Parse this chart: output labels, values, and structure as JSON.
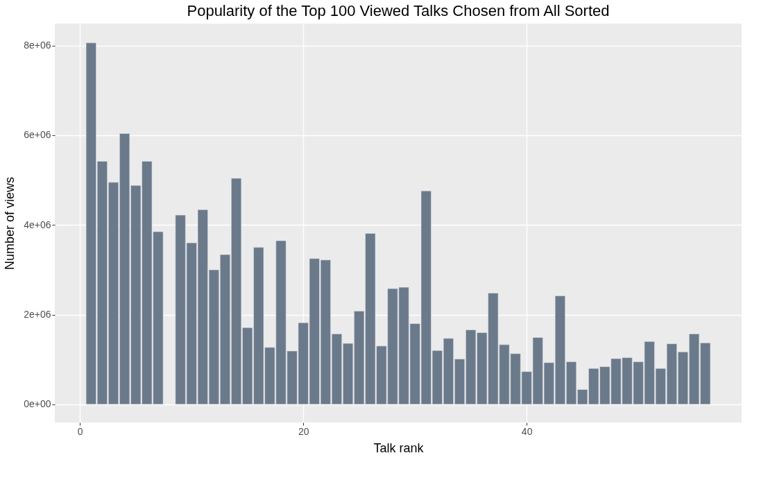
{
  "chart_data": {
    "type": "bar",
    "title": "Popularity of the Top 100 Viewed Talks Chosen from All Sorted",
    "xlabel": "Talk rank",
    "ylabel": "Number of views",
    "x": [
      1,
      2,
      3,
      4,
      5,
      6,
      7,
      9,
      10,
      11,
      12,
      13,
      14,
      15,
      16,
      17,
      18,
      19,
      20,
      21,
      22,
      23,
      24,
      25,
      26,
      27,
      28,
      29,
      30,
      31,
      32,
      33,
      34,
      35,
      36,
      37,
      38,
      39,
      40,
      41,
      42,
      43,
      44,
      45,
      46,
      47,
      48,
      49,
      50,
      51,
      52,
      53,
      54,
      55,
      56
    ],
    "values": [
      8060000,
      5420000,
      4950000,
      6040000,
      4880000,
      5420000,
      3850000,
      4220000,
      3600000,
      4340000,
      3000000,
      3340000,
      5040000,
      1710000,
      3500000,
      1270000,
      3650000,
      1190000,
      1820000,
      3250000,
      3220000,
      1570000,
      1360000,
      2080000,
      3810000,
      1300000,
      2580000,
      2610000,
      1800000,
      4760000,
      1200000,
      1470000,
      1010000,
      1660000,
      1600000,
      2480000,
      1330000,
      1130000,
      730000,
      1490000,
      930000,
      2420000,
      950000,
      330000,
      800000,
      840000,
      1020000,
      1040000,
      950000,
      1400000,
      800000,
      1350000,
      1170000,
      1570000,
      1370000
    ],
    "color": "#6b7a8b",
    "xlim": [
      -2.25,
      59.25
    ],
    "xticks": [
      0,
      20,
      40
    ],
    "ylim": [
      -404500,
      8490000
    ],
    "yticks": [
      {
        "value": 0,
        "label": "0e+00"
      },
      {
        "value": 2000000,
        "label": "2e+06"
      },
      {
        "value": 4000000,
        "label": "4e+06"
      },
      {
        "value": 6000000,
        "label": "6e+06"
      },
      {
        "value": 8000000,
        "label": "8e+06"
      }
    ],
    "grid": true
  }
}
